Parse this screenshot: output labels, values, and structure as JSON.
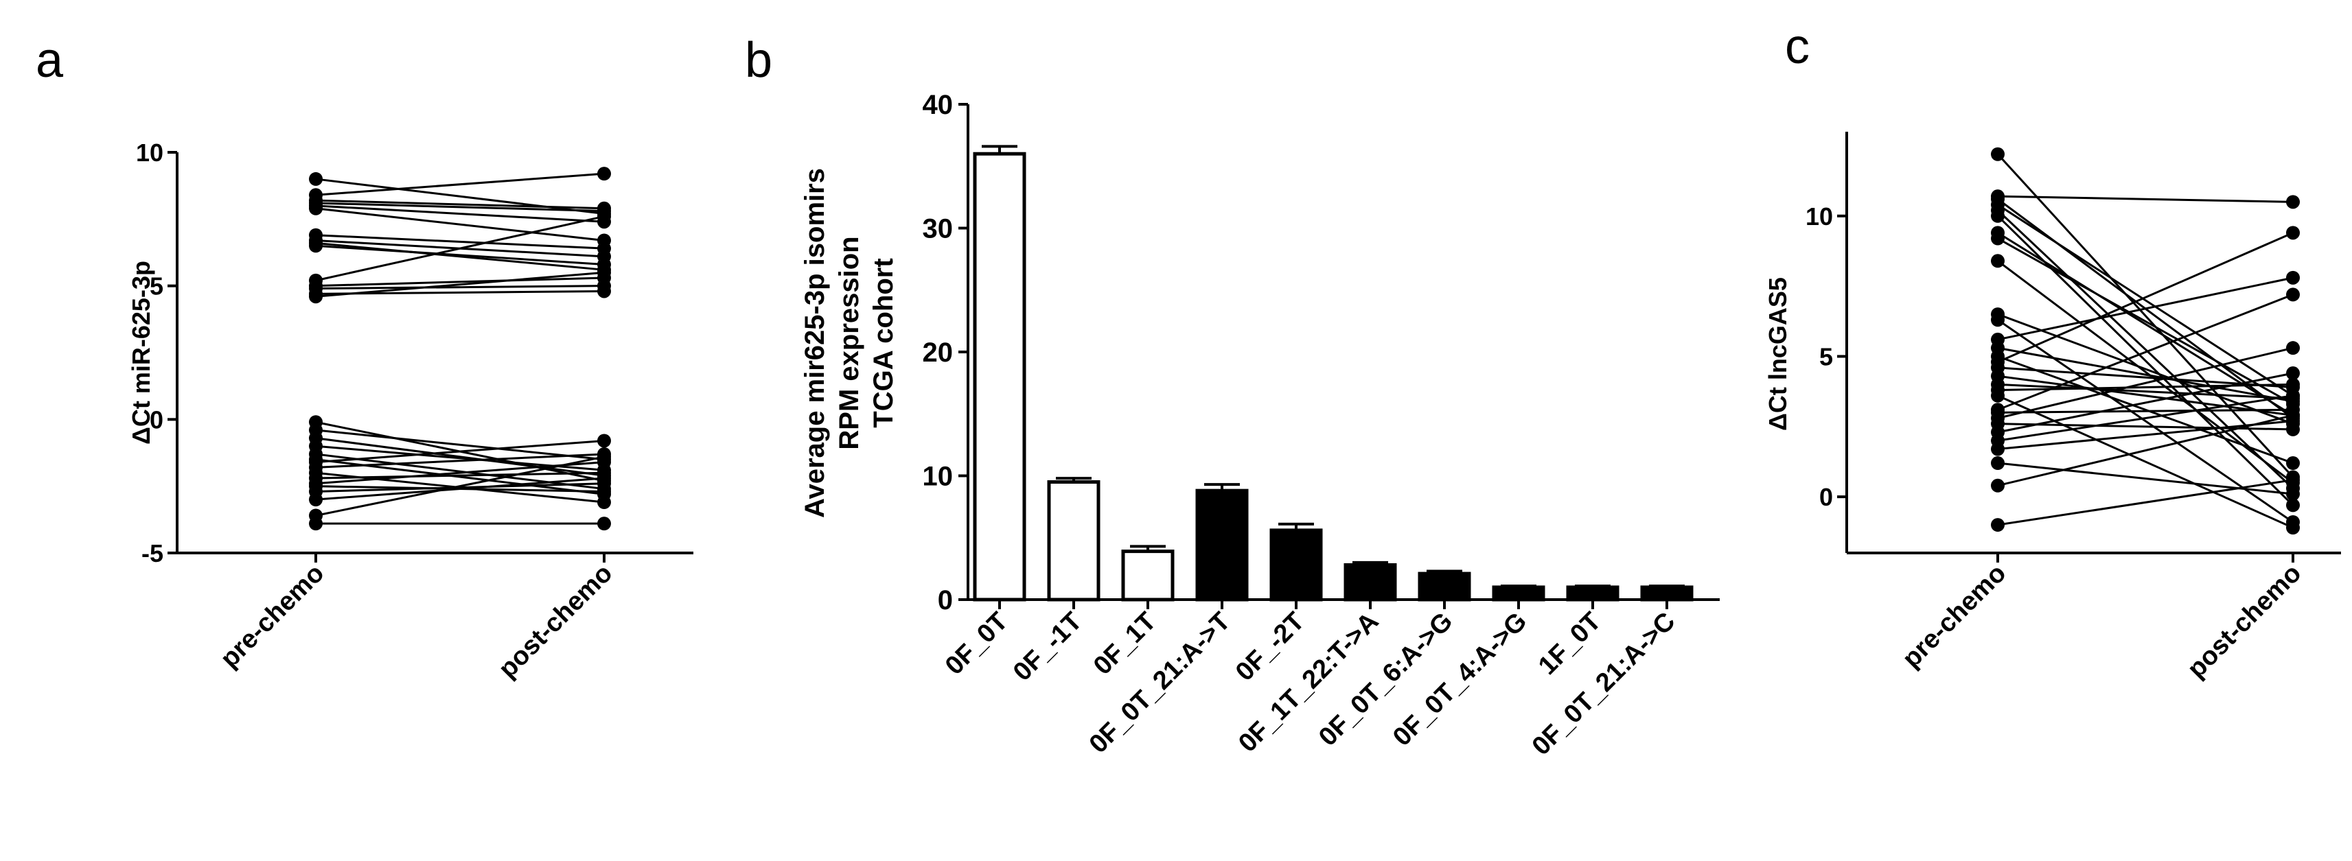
{
  "panels": {
    "a": {
      "label": "a"
    },
    "b": {
      "label": "b"
    },
    "c": {
      "label": "c"
    }
  },
  "chart_data": [
    {
      "panel": "a",
      "type": "paired-dot-line",
      "ylabel": "ΔCt miR-625-3p",
      "categories": [
        "pre-chemo",
        "post-chemo"
      ],
      "yticks": [
        -5,
        0,
        5,
        10
      ],
      "ylim": [
        -5,
        10
      ],
      "pairs": [
        [
          9.0,
          7.7
        ],
        [
          8.4,
          9.2
        ],
        [
          8.2,
          7.9
        ],
        [
          8.1,
          7.8
        ],
        [
          8.0,
          7.4
        ],
        [
          7.9,
          6.7
        ],
        [
          6.9,
          6.4
        ],
        [
          6.7,
          6.1
        ],
        [
          6.6,
          5.6
        ],
        [
          6.5,
          5.8
        ],
        [
          5.2,
          7.6
        ],
        [
          5.0,
          5.3
        ],
        [
          4.9,
          5.0
        ],
        [
          4.7,
          4.8
        ],
        [
          4.6,
          5.5
        ],
        [
          -0.1,
          -2.3
        ],
        [
          -0.4,
          -1.5
        ],
        [
          -0.7,
          -2.1
        ],
        [
          -1.0,
          -1.9
        ],
        [
          -1.3,
          -2.6
        ],
        [
          -1.5,
          -2.8
        ],
        [
          -1.6,
          -0.8
        ],
        [
          -1.8,
          -1.3
        ],
        [
          -2.0,
          -3.1
        ],
        [
          -2.2,
          -2.0
        ],
        [
          -2.4,
          -1.6
        ],
        [
          -2.5,
          -2.7
        ],
        [
          -2.7,
          -2.4
        ],
        [
          -3.0,
          -2.2
        ],
        [
          -3.6,
          -1.4
        ],
        [
          -3.9,
          -3.9
        ]
      ]
    },
    {
      "panel": "b",
      "type": "bar",
      "ylabel_lines": [
        "Average mir625-3p isomirs",
        "RPM expression",
        "TCGA cohort"
      ],
      "categories": [
        "0F_0T",
        "0F_-1T",
        "0F_1T",
        "0F_0T_21:A->T",
        "0F_-2T",
        "0F_1T_22:T->A",
        "0F_0T_6:A->G",
        "0F_0T_4:A->G",
        "1F_0T",
        "0F_0T_21:A->C"
      ],
      "values": [
        36.0,
        9.5,
        3.9,
        8.8,
        5.6,
        2.8,
        2.1,
        1.0,
        1.0,
        1.0
      ],
      "errors": [
        0.6,
        0.3,
        0.4,
        0.5,
        0.5,
        0.2,
        0.2,
        0.1,
        0.1,
        0.1
      ],
      "fills": [
        "white",
        "white",
        "white",
        "black",
        "black",
        "black",
        "black",
        "black",
        "black",
        "black"
      ],
      "yticks": [
        0,
        10,
        20,
        30,
        40
      ],
      "ylim": [
        0,
        40
      ]
    },
    {
      "panel": "c",
      "type": "paired-dot-line",
      "ylabel": "ΔCt lncGAS5",
      "categories": [
        "pre-chemo",
        "post-chemo"
      ],
      "yticks": [
        0,
        5,
        10
      ],
      "ylim": [
        -2,
        13
      ],
      "pairs": [
        [
          12.2,
          0.7
        ],
        [
          10.7,
          10.5
        ],
        [
          10.6,
          2.8
        ],
        [
          10.4,
          3.6
        ],
        [
          10.2,
          0.3
        ],
        [
          10.0,
          -0.3
        ],
        [
          9.4,
          2.9
        ],
        [
          9.2,
          3.3
        ],
        [
          8.4,
          0.5
        ],
        [
          6.5,
          2.6
        ],
        [
          6.3,
          -0.9
        ],
        [
          5.6,
          7.8
        ],
        [
          5.3,
          3.4
        ],
        [
          5.0,
          1.2
        ],
        [
          4.8,
          9.4
        ],
        [
          4.6,
          3.9
        ],
        [
          4.3,
          2.9
        ],
        [
          4.0,
          3.5
        ],
        [
          3.8,
          4.0
        ],
        [
          3.6,
          -1.1
        ],
        [
          3.1,
          7.2
        ],
        [
          3.0,
          3.1
        ],
        [
          2.8,
          5.3
        ],
        [
          2.6,
          2.4
        ],
        [
          2.3,
          4.4
        ],
        [
          2.0,
          3.6
        ],
        [
          1.7,
          2.7
        ],
        [
          1.2,
          0.1
        ],
        [
          0.4,
          2.9
        ],
        [
          -1.0,
          0.6
        ]
      ]
    }
  ]
}
